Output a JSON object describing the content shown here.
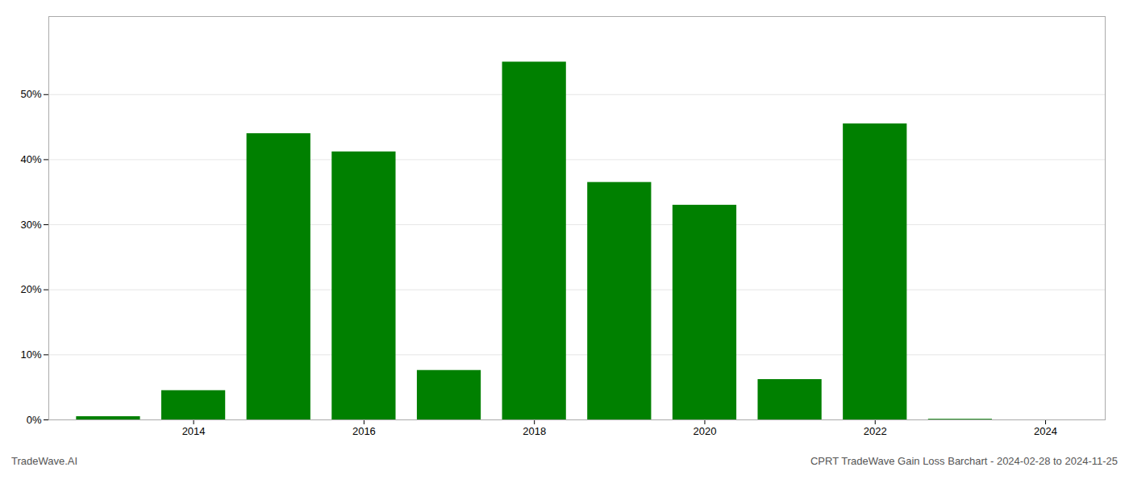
{
  "chart_data": {
    "type": "bar",
    "title": "CPRT TradeWave Gain Loss Barchart - 2024-02-28 to 2024-11-25",
    "annotations": [
      "TradeWave.AI"
    ],
    "x": [
      2013,
      2014,
      2015,
      2016,
      2017,
      2018,
      2019,
      2020,
      2021,
      2022,
      2023
    ],
    "values": [
      0.005,
      0.045,
      0.44,
      0.412,
      0.076,
      0.55,
      0.365,
      0.33,
      0.062,
      0.455,
      0.001
    ],
    "color": "#008000",
    "xlim": [
      2012.3,
      2024.7
    ],
    "xticks": [
      2014,
      2016,
      2018,
      2020,
      2022,
      2024
    ],
    "ylim": [
      0,
      0.62
    ],
    "yticks": [
      {
        "value": 0.0,
        "label": "0%"
      },
      {
        "value": 0.1,
        "label": "10%"
      },
      {
        "value": 0.2,
        "label": "20%"
      },
      {
        "value": 0.3,
        "label": "30%"
      },
      {
        "value": 0.4,
        "label": "40%"
      },
      {
        "value": 0.5,
        "label": "50%"
      }
    ],
    "grid": true
  }
}
